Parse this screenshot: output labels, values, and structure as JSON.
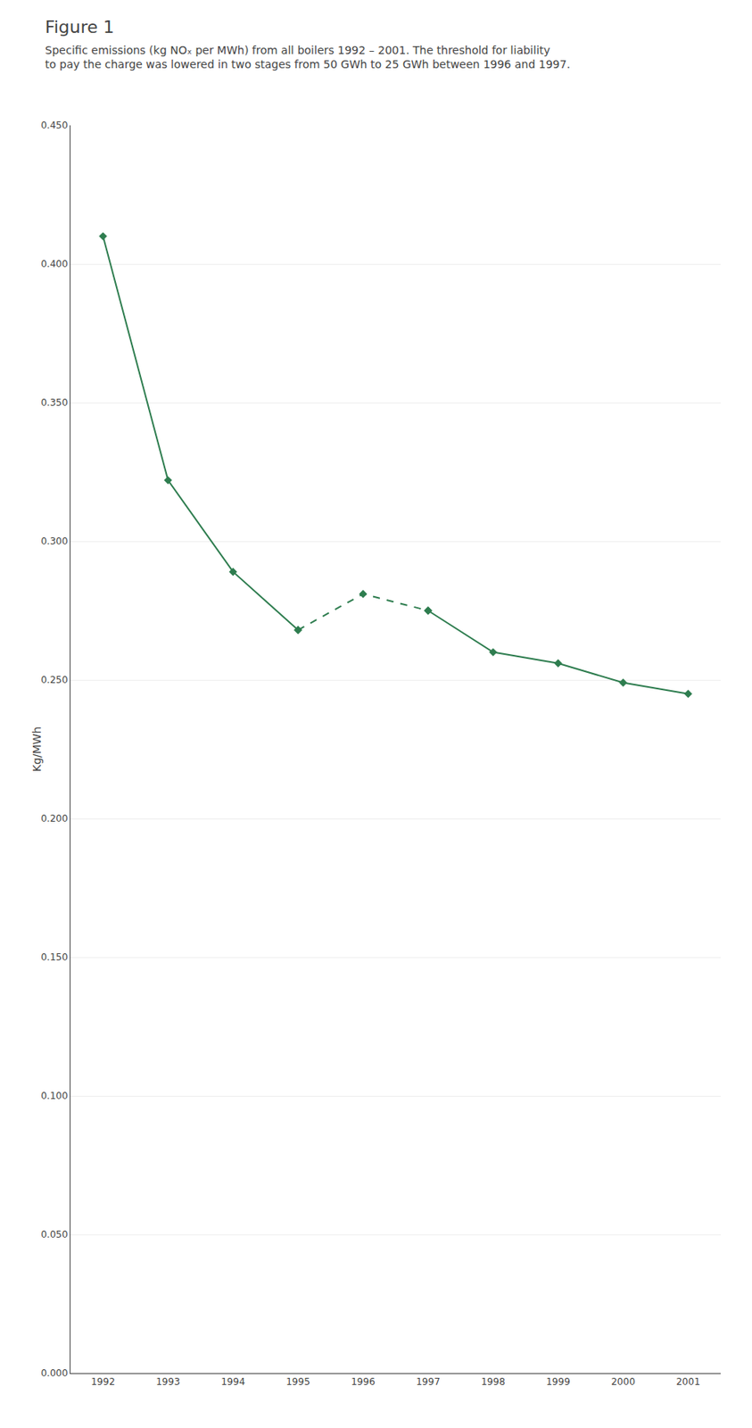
{
  "chart_data": {
    "type": "line",
    "title": "Figure 1",
    "subtitle": "Specific emissions (kg NOₓ per MWh) from all boilers 1992 – 2001. The threshold for liability to pay the charge was lowered in two stages from 50 GWh to 25 GWh between 1996 and 1997.",
    "y_label": "Kg/MWh",
    "x": [
      1992,
      1993,
      1994,
      1995,
      1996,
      1997,
      1998,
      1999,
      2000,
      2001
    ],
    "color": "#2e7d4f",
    "marker": "diamond",
    "series": [
      {
        "line_style": "solid",
        "values": [
          0.41,
          0.322,
          0.289,
          0.268,
          null,
          null,
          null,
          null,
          null,
          null
        ]
      },
      {
        "line_style": "dashed",
        "values": [
          null,
          null,
          null,
          0.268,
          0.281,
          0.275,
          null,
          null,
          null,
          null
        ]
      },
      {
        "line_style": "solid",
        "values": [
          null,
          null,
          null,
          null,
          null,
          0.275,
          0.26,
          0.256,
          0.249,
          0.245
        ]
      }
    ],
    "xlim": [
      1991.5,
      2001.5
    ],
    "xticks": [
      1992,
      1993,
      1994,
      1995,
      1996,
      1997,
      1998,
      1999,
      2000,
      2001
    ],
    "ylim": [
      0.0,
      0.45
    ],
    "yticks": [
      {
        "value": 0.0,
        "label": "0.000"
      },
      {
        "value": 0.05,
        "label": "0.050"
      },
      {
        "value": 0.1,
        "label": "0.100"
      },
      {
        "value": 0.15,
        "label": "0.150"
      },
      {
        "value": 0.2,
        "label": "0.200"
      },
      {
        "value": 0.25,
        "label": "0.250"
      },
      {
        "value": 0.3,
        "label": "0.300"
      },
      {
        "value": 0.35,
        "label": "0.350"
      },
      {
        "value": 0.4,
        "label": "0.400"
      },
      {
        "value": 0.45,
        "label": "0.450"
      }
    ],
    "grid": true
  }
}
